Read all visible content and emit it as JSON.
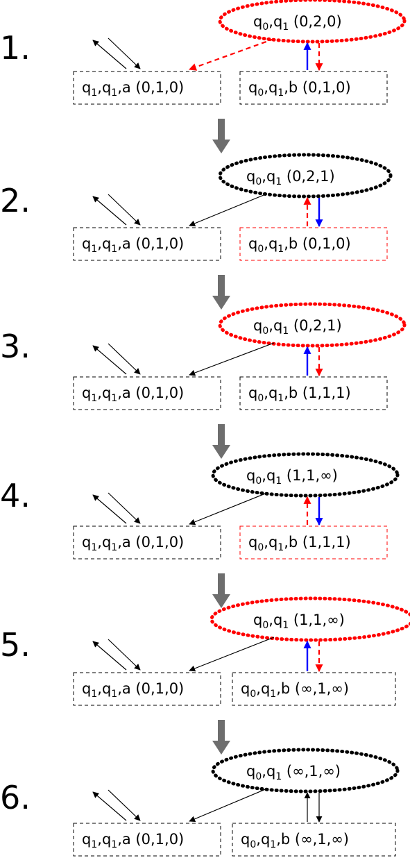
{
  "colors": {
    "black": "#000000",
    "red": "#ff0000",
    "blue": "#0000ff",
    "gray": "#6e6e6e"
  },
  "steps": [
    {
      "number": "1.",
      "top_node": {
        "base": "q",
        "sub1": "0",
        "mid": ",q",
        "sub2": "1",
        "tuple": " (0,2,0)",
        "style": "red-dotted"
      },
      "left_box": {
        "parts": [
          "q",
          "1",
          ",q",
          "1",
          ",a (0,1,0)"
        ],
        "style": "black-dashed"
      },
      "right_box": {
        "parts": [
          "q",
          "0",
          ",q",
          "1",
          ",b (0,1,0)"
        ],
        "style": "black-dashed"
      },
      "edge_top_to_left": "red-dashed",
      "edge_up": "blue",
      "edge_down": "red-dashed"
    },
    {
      "number": "2.",
      "top_node": {
        "base": "q",
        "sub1": "0",
        "mid": ",q",
        "sub2": "1",
        "tuple": " (0,2,1)",
        "style": "black-dotted"
      },
      "left_box": {
        "parts": [
          "q",
          "1",
          ",q",
          "1",
          ",a (0,1,0)"
        ],
        "style": "black-dashed"
      },
      "right_box": {
        "parts": [
          "q",
          "0",
          ",q",
          "1",
          ",b (0,1,0)"
        ],
        "style": "red-dashed"
      },
      "edge_top_to_left": "black",
      "edge_up": "red-dashed",
      "edge_down": "blue"
    },
    {
      "number": "3.",
      "top_node": {
        "base": "q",
        "sub1": "0",
        "mid": ",q",
        "sub2": "1",
        "tuple": " (0,2,1)",
        "style": "red-dotted"
      },
      "left_box": {
        "parts": [
          "q",
          "1",
          ",q",
          "1",
          ",a (0,1,0)"
        ],
        "style": "black-dashed"
      },
      "right_box": {
        "parts": [
          "q",
          "0",
          ",q",
          "1",
          ",b (1,1,1)"
        ],
        "style": "black-dashed"
      },
      "edge_top_to_left": "black",
      "edge_up": "blue",
      "edge_down": "red-dashed"
    },
    {
      "number": "4.",
      "top_node": {
        "base": "q",
        "sub1": "0",
        "mid": ",q",
        "sub2": "1",
        "tuple": " (1,1,∞)",
        "style": "black-dotted"
      },
      "left_box": {
        "parts": [
          "q",
          "1",
          ",q",
          "1",
          ",a (0,1,0)"
        ],
        "style": "black-dashed"
      },
      "right_box": {
        "parts": [
          "q",
          "0",
          ",q",
          "1",
          ",b (1,1,1)"
        ],
        "style": "red-dashed"
      },
      "edge_top_to_left": "black",
      "edge_up": "red-dashed",
      "edge_down": "blue"
    },
    {
      "number": "5.",
      "top_node": {
        "base": "q",
        "sub1": "0",
        "mid": ",q",
        "sub2": "1",
        "tuple": " (1,1,∞)",
        "style": "red-dotted"
      },
      "left_box": {
        "parts": [
          "q",
          "1",
          ",q",
          "1",
          ",a (0,1,0)"
        ],
        "style": "black-dashed"
      },
      "right_box": {
        "parts": [
          "q",
          "0",
          ",q",
          "1",
          ",b (∞,1,∞)"
        ],
        "style": "black-dashed"
      },
      "edge_top_to_left": "black",
      "edge_up": "blue",
      "edge_down": "red-dashed"
    },
    {
      "number": "6.",
      "top_node": {
        "base": "q",
        "sub1": "0",
        "mid": ",q",
        "sub2": "1",
        "tuple": " (∞,1,∞)",
        "style": "black-dotted"
      },
      "left_box": {
        "parts": [
          "q",
          "1",
          ",q",
          "1",
          ",a (0,1,0)"
        ],
        "style": "black-dashed"
      },
      "right_box": {
        "parts": [
          "q",
          "0",
          ",q",
          "1",
          ",b (∞,1,∞)"
        ],
        "style": "black-dashed"
      },
      "edge_top_to_left": "black",
      "edge_up": "black",
      "edge_down": "black"
    }
  ]
}
